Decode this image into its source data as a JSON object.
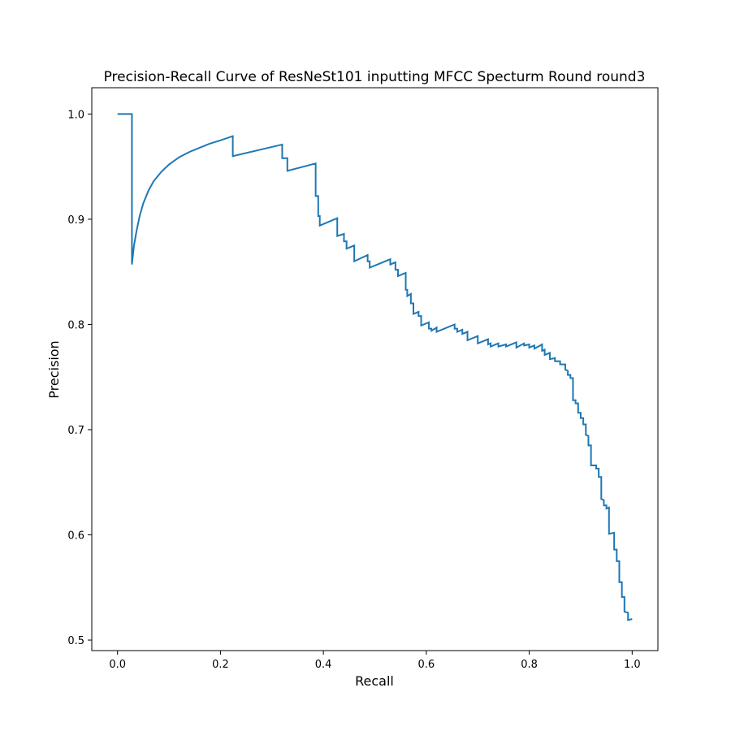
{
  "chart_data": {
    "type": "line",
    "title": "Precision-Recall Curve of ResNeSt101 inputting MFCC Specturm Round round3",
    "xlabel": "Recall",
    "ylabel": "Precision",
    "xlim": [
      -0.05,
      1.05
    ],
    "ylim": [
      0.49,
      1.025
    ],
    "x_ticks": [
      0.0,
      0.2,
      0.4,
      0.6,
      0.8,
      1.0
    ],
    "x_tick_labels": [
      "0.0",
      "0.2",
      "0.4",
      "0.6",
      "0.8",
      "1.0"
    ],
    "y_ticks": [
      0.5,
      0.6,
      0.7,
      0.8,
      0.9,
      1.0
    ],
    "y_tick_labels": [
      "0.5",
      "0.6",
      "0.7",
      "0.8",
      "0.9",
      "1.0"
    ],
    "grid": false,
    "line_color": "#1f77b4",
    "series": [
      {
        "points": [
          [
            0.0,
            1.0
          ],
          [
            0.028,
            1.0
          ],
          [
            0.028,
            0.857
          ],
          [
            0.032,
            0.875
          ],
          [
            0.037,
            0.889
          ],
          [
            0.043,
            0.903
          ],
          [
            0.05,
            0.915
          ],
          [
            0.06,
            0.927
          ],
          [
            0.07,
            0.936
          ],
          [
            0.085,
            0.945
          ],
          [
            0.1,
            0.952
          ],
          [
            0.12,
            0.959
          ],
          [
            0.14,
            0.964
          ],
          [
            0.16,
            0.968
          ],
          [
            0.18,
            0.972
          ],
          [
            0.2,
            0.975
          ],
          [
            0.224,
            0.979
          ],
          [
            0.224,
            0.96
          ],
          [
            0.32,
            0.971
          ],
          [
            0.32,
            0.958
          ],
          [
            0.33,
            0.958
          ],
          [
            0.33,
            0.946
          ],
          [
            0.385,
            0.953
          ],
          [
            0.385,
            0.922
          ],
          [
            0.39,
            0.922
          ],
          [
            0.39,
            0.903
          ],
          [
            0.393,
            0.903
          ],
          [
            0.393,
            0.894
          ],
          [
            0.427,
            0.901
          ],
          [
            0.427,
            0.884
          ],
          [
            0.44,
            0.886
          ],
          [
            0.44,
            0.879
          ],
          [
            0.445,
            0.879
          ],
          [
            0.445,
            0.872
          ],
          [
            0.46,
            0.875
          ],
          [
            0.46,
            0.86
          ],
          [
            0.486,
            0.866
          ],
          [
            0.486,
            0.86
          ],
          [
            0.49,
            0.86
          ],
          [
            0.49,
            0.854
          ],
          [
            0.53,
            0.862
          ],
          [
            0.53,
            0.857
          ],
          [
            0.54,
            0.859
          ],
          [
            0.54,
            0.852
          ],
          [
            0.545,
            0.852
          ],
          [
            0.545,
            0.846
          ],
          [
            0.56,
            0.849
          ],
          [
            0.56,
            0.833
          ],
          [
            0.563,
            0.833
          ],
          [
            0.563,
            0.827
          ],
          [
            0.57,
            0.829
          ],
          [
            0.57,
            0.82
          ],
          [
            0.575,
            0.82
          ],
          [
            0.575,
            0.81
          ],
          [
            0.585,
            0.812
          ],
          [
            0.585,
            0.808
          ],
          [
            0.59,
            0.808
          ],
          [
            0.59,
            0.799
          ],
          [
            0.605,
            0.802
          ],
          [
            0.605,
            0.796
          ],
          [
            0.61,
            0.796
          ],
          [
            0.61,
            0.794
          ],
          [
            0.62,
            0.797
          ],
          [
            0.62,
            0.793
          ],
          [
            0.655,
            0.8
          ],
          [
            0.655,
            0.796
          ],
          [
            0.66,
            0.796
          ],
          [
            0.66,
            0.793
          ],
          [
            0.67,
            0.795
          ],
          [
            0.67,
            0.791
          ],
          [
            0.68,
            0.793
          ],
          [
            0.68,
            0.785
          ],
          [
            0.7,
            0.789
          ],
          [
            0.7,
            0.782
          ],
          [
            0.72,
            0.786
          ],
          [
            0.72,
            0.781
          ],
          [
            0.725,
            0.782
          ],
          [
            0.725,
            0.779
          ],
          [
            0.74,
            0.782
          ],
          [
            0.74,
            0.779
          ],
          [
            0.755,
            0.781
          ],
          [
            0.755,
            0.779
          ],
          [
            0.775,
            0.783
          ],
          [
            0.775,
            0.778
          ],
          [
            0.79,
            0.782
          ],
          [
            0.79,
            0.78
          ],
          [
            0.8,
            0.781
          ],
          [
            0.8,
            0.778
          ],
          [
            0.81,
            0.78
          ],
          [
            0.81,
            0.777
          ],
          [
            0.825,
            0.781
          ],
          [
            0.825,
            0.775
          ],
          [
            0.83,
            0.776
          ],
          [
            0.83,
            0.771
          ],
          [
            0.84,
            0.773
          ],
          [
            0.84,
            0.767
          ],
          [
            0.85,
            0.768
          ],
          [
            0.85,
            0.765
          ],
          [
            0.86,
            0.765
          ],
          [
            0.86,
            0.762
          ],
          [
            0.87,
            0.762
          ],
          [
            0.87,
            0.757
          ],
          [
            0.875,
            0.756
          ],
          [
            0.875,
            0.752
          ],
          [
            0.88,
            0.752
          ],
          [
            0.88,
            0.749
          ],
          [
            0.885,
            0.749
          ],
          [
            0.885,
            0.728
          ],
          [
            0.89,
            0.728
          ],
          [
            0.89,
            0.725
          ],
          [
            0.895,
            0.725
          ],
          [
            0.895,
            0.716
          ],
          [
            0.9,
            0.716
          ],
          [
            0.9,
            0.711
          ],
          [
            0.905,
            0.711
          ],
          [
            0.905,
            0.705
          ],
          [
            0.91,
            0.705
          ],
          [
            0.91,
            0.695
          ],
          [
            0.915,
            0.694
          ],
          [
            0.915,
            0.685
          ],
          [
            0.92,
            0.685
          ],
          [
            0.92,
            0.666
          ],
          [
            0.93,
            0.666
          ],
          [
            0.93,
            0.663
          ],
          [
            0.935,
            0.663
          ],
          [
            0.935,
            0.655
          ],
          [
            0.94,
            0.655
          ],
          [
            0.94,
            0.634
          ],
          [
            0.945,
            0.633
          ],
          [
            0.945,
            0.628
          ],
          [
            0.95,
            0.628
          ],
          [
            0.95,
            0.625
          ],
          [
            0.955,
            0.626
          ],
          [
            0.955,
            0.601
          ],
          [
            0.965,
            0.602
          ],
          [
            0.965,
            0.586
          ],
          [
            0.97,
            0.586
          ],
          [
            0.97,
            0.575
          ],
          [
            0.975,
            0.575
          ],
          [
            0.975,
            0.555
          ],
          [
            0.98,
            0.555
          ],
          [
            0.98,
            0.541
          ],
          [
            0.985,
            0.541
          ],
          [
            0.985,
            0.527
          ],
          [
            0.992,
            0.526
          ],
          [
            0.992,
            0.519
          ],
          [
            1.0,
            0.52
          ]
        ]
      }
    ]
  }
}
